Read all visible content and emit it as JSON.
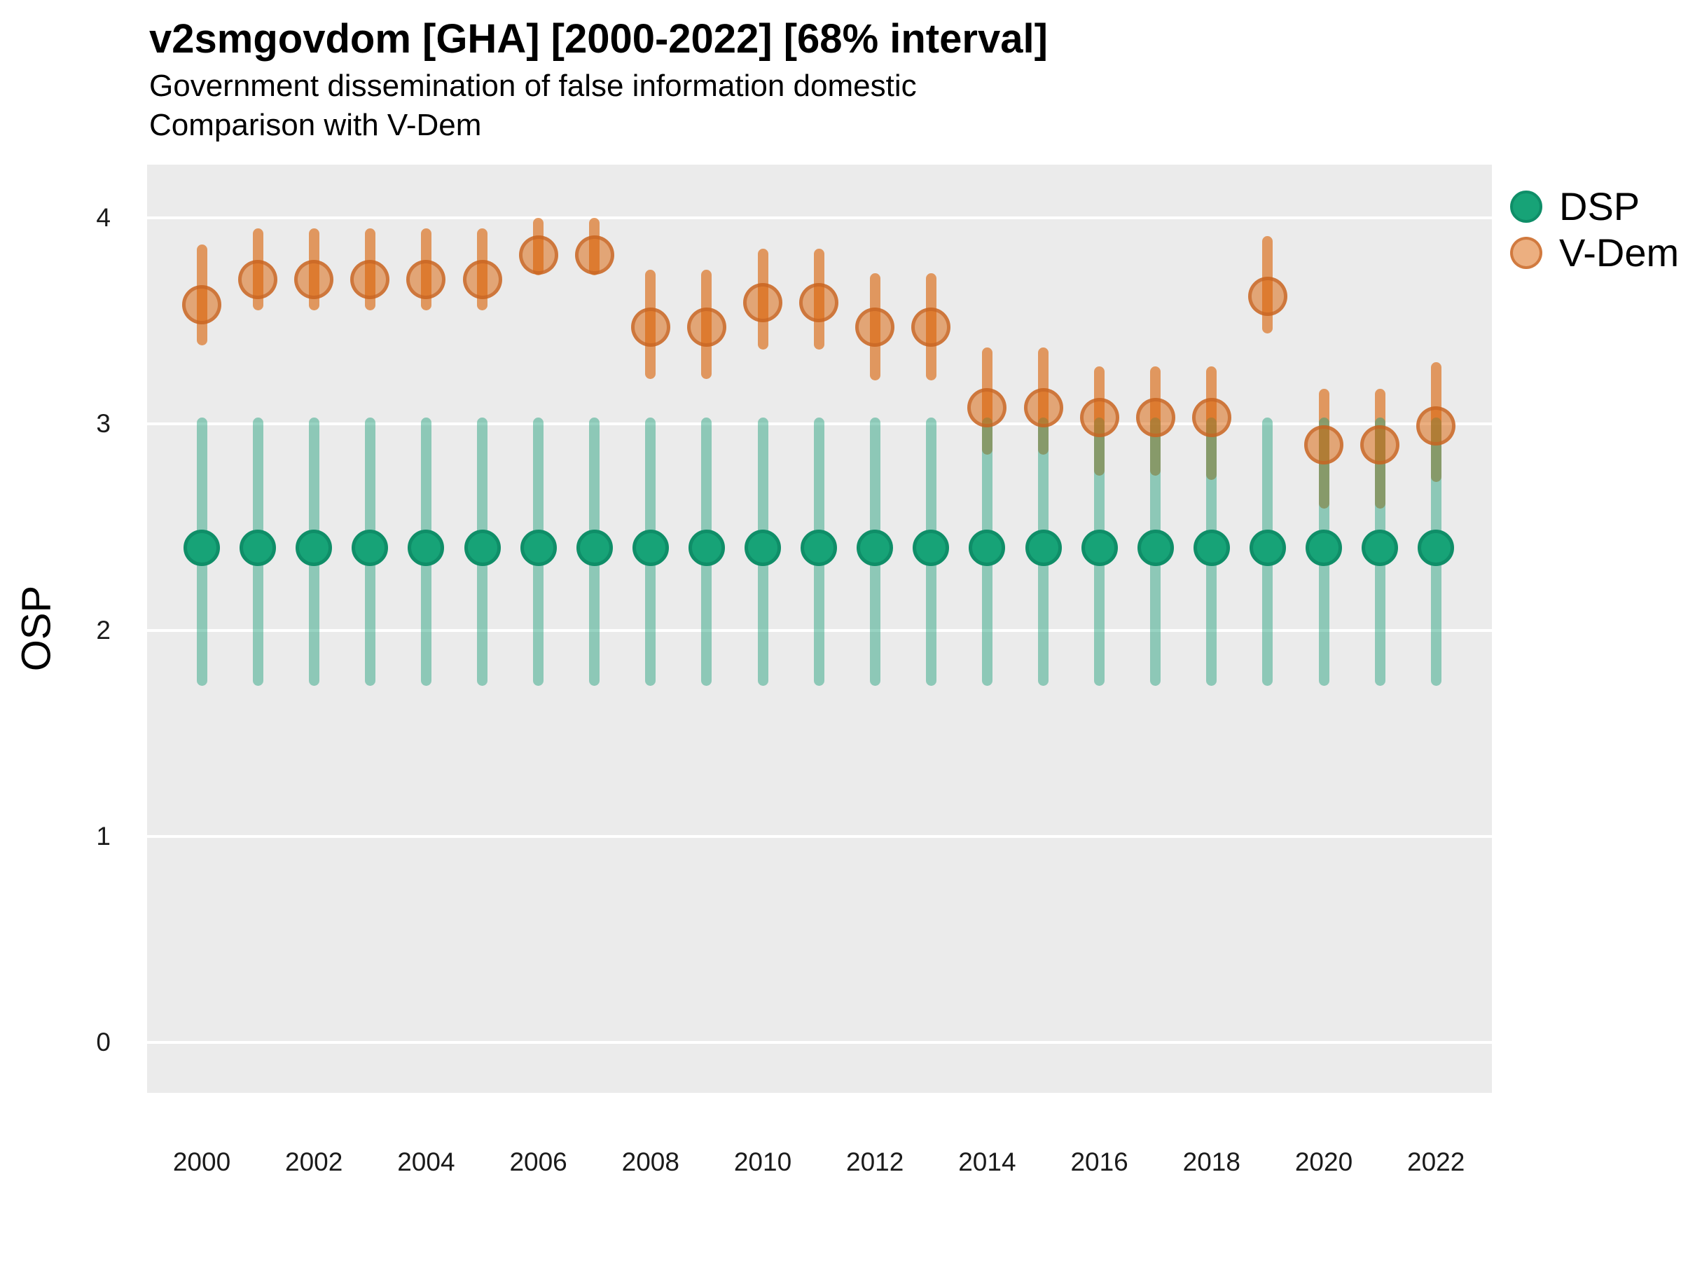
{
  "chart_data": {
    "type": "scatter",
    "title": "v2smgovdom [GHA] [2000-2022] [68% interval]",
    "subtitle": "Government dissemination of false information domestic",
    "subtitle2": "Comparison with V-Dem",
    "ylabel": "OSP",
    "xlabel": "",
    "interval": "68%",
    "x": [
      2000,
      2001,
      2002,
      2003,
      2004,
      2005,
      2006,
      2007,
      2008,
      2009,
      2010,
      2011,
      2012,
      2013,
      2014,
      2015,
      2016,
      2017,
      2018,
      2019,
      2020,
      2021,
      2022
    ],
    "x_tick_years": [
      2000,
      2002,
      2004,
      2006,
      2008,
      2010,
      2012,
      2014,
      2016,
      2018,
      2020,
      2022
    ],
    "x_tick_labels": [
      "2000",
      "2002",
      "2004",
      "2006",
      "2008",
      "2010",
      "2012",
      "2014",
      "2016",
      "2018",
      "2020",
      "2022"
    ],
    "y_ticks": [
      0,
      1,
      2,
      3,
      4
    ],
    "ylim": [
      -0.25,
      4.26
    ],
    "grid": "white major horizontal gridlines on grey panel",
    "legend_position": "right-top",
    "panel_background": "#EBEBEB",
    "series": [
      {
        "name": "DSP",
        "color": "#1B9E77",
        "point_fill": "#17A377",
        "point_stroke": "#0F8E68",
        "bar_color": "rgba(27,158,119,0.45)",
        "values": [
          2.4,
          2.4,
          2.4,
          2.4,
          2.4,
          2.4,
          2.4,
          2.4,
          2.4,
          2.4,
          2.4,
          2.4,
          2.4,
          2.4,
          2.4,
          2.4,
          2.4,
          2.4,
          2.4,
          2.4,
          2.4,
          2.4,
          2.4
        ],
        "lo": [
          1.73,
          1.73,
          1.73,
          1.73,
          1.73,
          1.73,
          1.73,
          1.73,
          1.73,
          1.73,
          1.73,
          1.73,
          1.73,
          1.73,
          1.73,
          1.73,
          1.73,
          1.73,
          1.73,
          1.73,
          1.73,
          1.73,
          1.73
        ],
        "hi": [
          3.03,
          3.03,
          3.03,
          3.03,
          3.03,
          3.03,
          3.03,
          3.03,
          3.03,
          3.03,
          3.03,
          3.03,
          3.03,
          3.03,
          3.03,
          3.03,
          3.03,
          3.03,
          3.03,
          3.03,
          3.03,
          3.03,
          3.03
        ]
      },
      {
        "name": "V-Dem",
        "color": "#D95F02",
        "point_fill": "rgba(217,95,2,0.5)",
        "point_stroke": "rgba(198,100,35,0.7)",
        "bar_color": "rgba(217,95,2,0.6)",
        "values": [
          3.58,
          3.7,
          3.7,
          3.7,
          3.7,
          3.7,
          3.82,
          3.82,
          3.47,
          3.47,
          3.59,
          3.59,
          3.47,
          3.47,
          3.08,
          3.08,
          3.03,
          3.03,
          3.03,
          3.62,
          2.9,
          2.9,
          2.99
        ],
        "lo": [
          3.38,
          3.55,
          3.55,
          3.55,
          3.55,
          3.55,
          3.72,
          3.72,
          3.22,
          3.22,
          3.36,
          3.36,
          3.21,
          3.21,
          2.85,
          2.85,
          2.75,
          2.75,
          2.73,
          3.44,
          2.59,
          2.59,
          2.72
        ],
        "hi": [
          3.87,
          3.95,
          3.95,
          3.95,
          3.95,
          3.95,
          4.0,
          4.0,
          3.75,
          3.75,
          3.85,
          3.85,
          3.73,
          3.73,
          3.37,
          3.37,
          3.28,
          3.28,
          3.28,
          3.91,
          3.17,
          3.17,
          3.3
        ]
      }
    ]
  }
}
